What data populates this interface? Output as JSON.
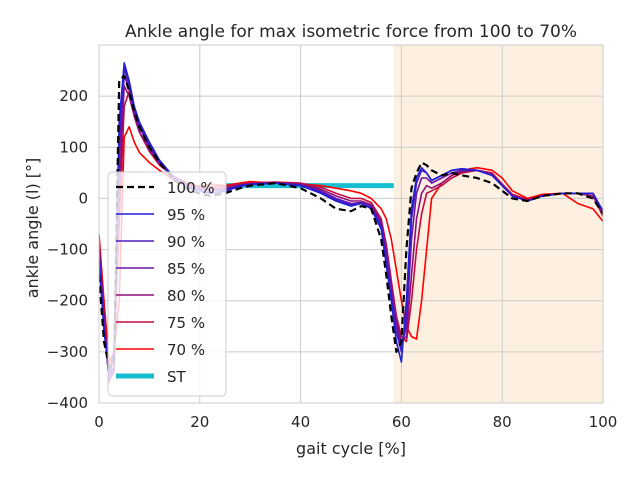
{
  "chart_data": {
    "type": "line",
    "title": "Ankle angle for max isometric force from 100 to 70%",
    "xlabel": "gait cycle [%]",
    "ylabel": "ankle angle (l) [°]",
    "xlim": [
      0,
      100
    ],
    "ylim": [
      -400,
      300
    ],
    "xticks": [
      0,
      20,
      40,
      60,
      80,
      100
    ],
    "xtick_labels": [
      "0",
      "20",
      "40",
      "60",
      "80",
      "100"
    ],
    "yticks": [
      200,
      100,
      0,
      -100,
      -200,
      -300,
      -400
    ],
    "ytick_labels": [
      "200",
      "100",
      "0",
      "−100",
      "−200",
      "−300",
      "−400"
    ],
    "grid": true,
    "legend_position": "lower-left",
    "shaded_regions": [
      {
        "x0": 58.5,
        "x1": 100,
        "color": "#fdf0e1"
      }
    ],
    "series": [
      {
        "name": "100 %",
        "color": "#000000",
        "dashed": true,
        "width": 2.2,
        "x": [
          0,
          1,
          2,
          3,
          4,
          5,
          6,
          7,
          8,
          10,
          12,
          15,
          18,
          20,
          22,
          25,
          28,
          30,
          35,
          40,
          44,
          47,
          50,
          52,
          54,
          56,
          57,
          58,
          59,
          60,
          61,
          62,
          63,
          64,
          65,
          66,
          68,
          70,
          72,
          75,
          78,
          80,
          82,
          85,
          88,
          92,
          95,
          98,
          100
        ],
        "y": [
          -150,
          -280,
          -330,
          -320,
          230,
          240,
          210,
          170,
          140,
          100,
          70,
          35,
          15,
          10,
          5,
          10,
          20,
          25,
          30,
          20,
          0,
          -20,
          -25,
          -15,
          -20,
          -80,
          -150,
          -230,
          -300,
          -280,
          -100,
          20,
          50,
          70,
          65,
          55,
          45,
          50,
          45,
          40,
          30,
          15,
          0,
          -5,
          5,
          10,
          10,
          0,
          -30
        ]
      },
      {
        "name": "95 %",
        "color": "#1f1fd8",
        "dashed": false,
        "width": 1.6,
        "x": [
          0,
          1,
          2,
          3,
          4,
          5,
          6,
          7,
          8,
          10,
          12,
          15,
          18,
          20,
          22,
          25,
          28,
          30,
          35,
          40,
          44,
          47,
          50,
          52,
          54,
          56,
          57,
          58,
          59,
          60,
          61,
          62,
          63,
          64,
          65,
          66,
          68,
          70,
          72,
          75,
          78,
          80,
          82,
          85,
          88,
          92,
          95,
          98,
          100
        ],
        "y": [
          -120,
          -260,
          -340,
          -300,
          150,
          265,
          230,
          180,
          150,
          110,
          75,
          40,
          20,
          15,
          10,
          15,
          25,
          28,
          30,
          25,
          10,
          -5,
          -15,
          -10,
          -20,
          -60,
          -130,
          -200,
          -280,
          -320,
          -200,
          -20,
          40,
          60,
          50,
          35,
          45,
          55,
          58,
          55,
          45,
          25,
          5,
          -5,
          5,
          10,
          10,
          10,
          -25
        ]
      },
      {
        "name": "90 %",
        "color": "#4b1bc0",
        "dashed": false,
        "width": 1.6,
        "x": [
          0,
          1,
          2,
          3,
          4,
          5,
          6,
          7,
          8,
          10,
          12,
          15,
          18,
          20,
          22,
          25,
          28,
          30,
          35,
          40,
          44,
          47,
          50,
          52,
          54,
          56,
          57,
          58,
          59,
          60,
          61,
          62,
          63,
          64,
          65,
          66,
          68,
          70,
          72,
          75,
          78,
          80,
          82,
          85,
          88,
          92,
          95,
          98,
          100
        ],
        "y": [
          -110,
          -250,
          -345,
          -330,
          120,
          255,
          220,
          175,
          145,
          105,
          72,
          38,
          20,
          15,
          10,
          14,
          24,
          27,
          30,
          25,
          12,
          -2,
          -12,
          -10,
          -18,
          -55,
          -120,
          -190,
          -260,
          -300,
          -230,
          -40,
          30,
          55,
          50,
          35,
          45,
          55,
          58,
          55,
          45,
          25,
          5,
          -5,
          5,
          10,
          10,
          10,
          -25
        ]
      },
      {
        "name": "85 %",
        "color": "#6a15a8",
        "dashed": false,
        "width": 1.6,
        "x": [
          0,
          1,
          2,
          3,
          4,
          5,
          6,
          7,
          8,
          10,
          12,
          15,
          18,
          20,
          22,
          25,
          28,
          30,
          35,
          40,
          44,
          47,
          50,
          52,
          54,
          56,
          57,
          58,
          59,
          60,
          61,
          62,
          63,
          64,
          65,
          66,
          68,
          70,
          72,
          75,
          78,
          80,
          82,
          85,
          88,
          92,
          95,
          98,
          100
        ],
        "y": [
          -100,
          -240,
          -355,
          -340,
          80,
          240,
          215,
          170,
          140,
          100,
          70,
          38,
          22,
          18,
          15,
          18,
          25,
          28,
          30,
          26,
          15,
          0,
          -10,
          -8,
          -15,
          -50,
          -110,
          -180,
          -250,
          -290,
          -250,
          -80,
          10,
          40,
          40,
          30,
          40,
          50,
          55,
          55,
          45,
          25,
          5,
          -5,
          5,
          10,
          10,
          10,
          -25
        ]
      },
      {
        "name": "80 %",
        "color": "#8f0f78",
        "dashed": false,
        "width": 1.6,
        "x": [
          0,
          1,
          2,
          3,
          4,
          5,
          6,
          7,
          8,
          10,
          12,
          15,
          18,
          20,
          22,
          25,
          28,
          30,
          35,
          40,
          44,
          47,
          50,
          52,
          54,
          56,
          57,
          58,
          59,
          60,
          61,
          62,
          63,
          64,
          65,
          66,
          68,
          70,
          72,
          75,
          78,
          80,
          82,
          85,
          88,
          92,
          95,
          98,
          100
        ],
        "y": [
          -90,
          -230,
          -360,
          -330,
          20,
          220,
          200,
          160,
          130,
          95,
          68,
          40,
          25,
          20,
          18,
          20,
          26,
          28,
          30,
          28,
          18,
          5,
          -5,
          -5,
          -12,
          -45,
          -100,
          -170,
          -240,
          -280,
          -270,
          -150,
          -40,
          10,
          25,
          20,
          30,
          45,
          52,
          55,
          48,
          25,
          5,
          -5,
          5,
          10,
          10,
          5,
          -30
        ]
      },
      {
        "name": "75 %",
        "color": "#c40a3e",
        "dashed": false,
        "width": 1.6,
        "x": [
          0,
          1,
          2,
          3,
          4,
          5,
          6,
          7,
          8,
          10,
          12,
          15,
          18,
          20,
          22,
          25,
          28,
          30,
          35,
          40,
          44,
          47,
          50,
          52,
          54,
          56,
          57,
          58,
          59,
          60,
          61,
          62,
          63,
          64,
          65,
          66,
          68,
          70,
          72,
          75,
          78,
          80,
          82,
          85,
          88,
          92,
          95,
          98,
          100
        ],
        "y": [
          -80,
          -220,
          -360,
          -300,
          -50,
          180,
          210,
          165,
          130,
          92,
          65,
          42,
          28,
          24,
          22,
          24,
          28,
          30,
          32,
          30,
          22,
          10,
          0,
          0,
          -8,
          -40,
          -90,
          -160,
          -230,
          -270,
          -280,
          -200,
          -100,
          -30,
          10,
          15,
          25,
          40,
          50,
          55,
          50,
          28,
          8,
          -2,
          5,
          10,
          10,
          5,
          -35
        ]
      },
      {
        "name": "70 %",
        "color": "#ff0000",
        "dashed": false,
        "width": 1.6,
        "x": [
          0,
          1,
          2,
          3,
          4,
          5,
          6,
          7,
          8,
          10,
          12,
          15,
          18,
          20,
          22,
          25,
          28,
          30,
          35,
          40,
          44,
          47,
          50,
          52,
          54,
          56,
          57,
          58,
          59,
          60,
          61,
          62,
          63,
          64,
          65,
          66,
          68,
          70,
          72,
          75,
          78,
          80,
          82,
          85,
          88,
          92,
          95,
          98,
          100
        ],
        "y": [
          -70,
          -200,
          -320,
          -300,
          -200,
          120,
          140,
          110,
          90,
          70,
          55,
          35,
          25,
          22,
          28,
          25,
          30,
          33,
          30,
          28,
          25,
          20,
          15,
          10,
          0,
          -20,
          -40,
          -80,
          -140,
          -200,
          -250,
          -270,
          -275,
          -200,
          -100,
          0,
          30,
          45,
          55,
          60,
          55,
          40,
          15,
          0,
          8,
          10,
          -10,
          -20,
          -45
        ]
      },
      {
        "name": "ST",
        "color": "#17becf",
        "dashed": false,
        "width": 5,
        "x": [
          25,
          58.5
        ],
        "y": [
          25,
          25
        ]
      }
    ]
  }
}
